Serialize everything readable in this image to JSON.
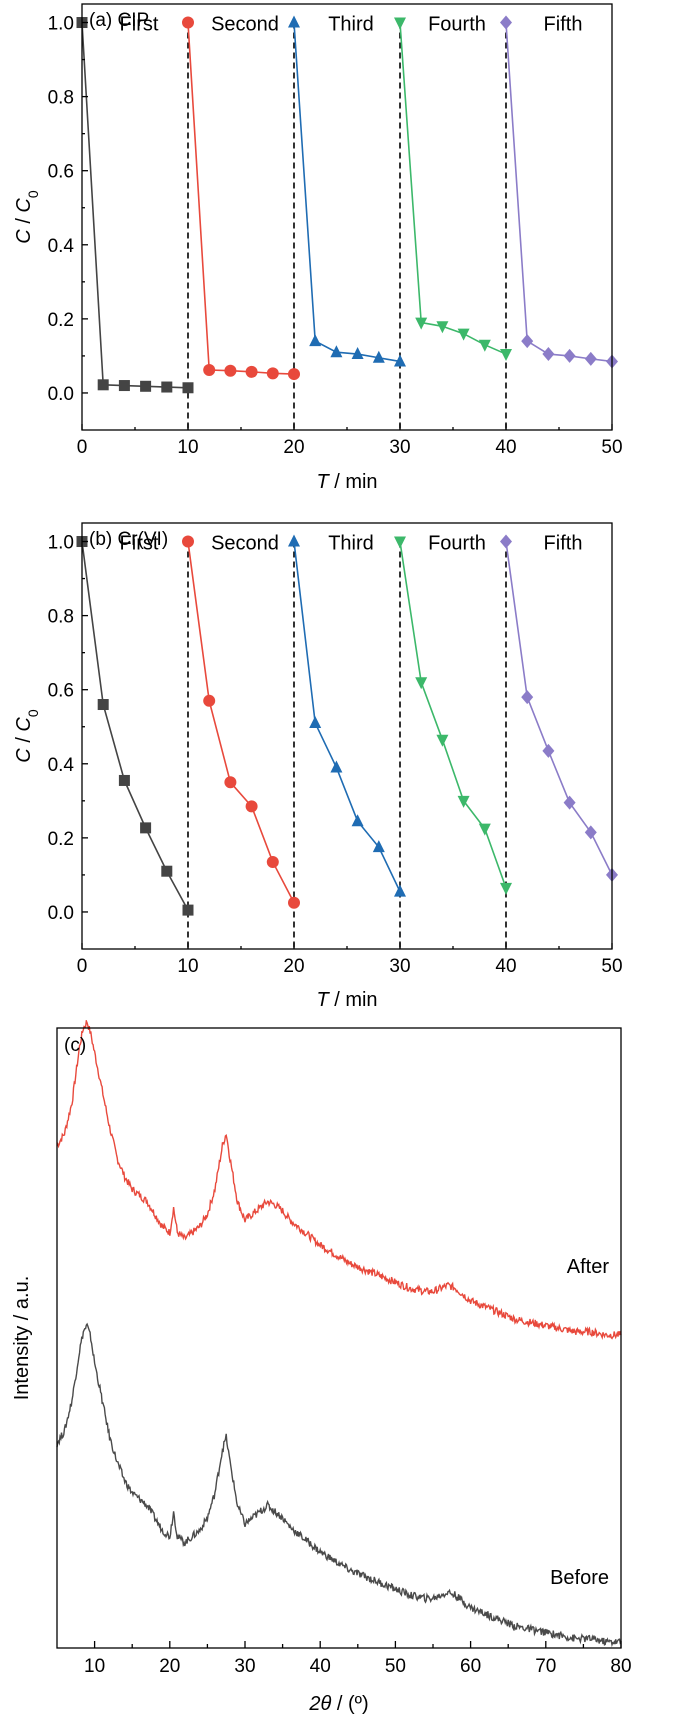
{
  "chart_data": [
    {
      "type": "line",
      "panel_label": "(a) CIP",
      "xlabel_italic": "T",
      "xlabel_rest": " / min",
      "ylabel_c": "C",
      "ylabel_sep": " / ",
      "ylabel_c0": "C",
      "ylabel_c0_sub": "0",
      "xlim": [
        0,
        50
      ],
      "ylim": [
        -0.1,
        1.05
      ],
      "xticks": [
        "0",
        "10",
        "20",
        "30",
        "40",
        "50"
      ],
      "yticks": [
        "0.0",
        "0.2",
        "0.4",
        "0.6",
        "0.8",
        "1.0"
      ],
      "dashed_lines_x": [
        10,
        20,
        30,
        40
      ],
      "cycle_labels": [
        "First",
        "Second",
        "Third",
        "Fourth",
        "Fifth"
      ],
      "series": [
        {
          "color": "#444444",
          "marker": "square",
          "x": [
            0,
            2,
            4,
            6,
            8,
            10
          ],
          "y": [
            1.0,
            0.022,
            0.02,
            0.018,
            0.016,
            0.014
          ]
        },
        {
          "color": "#e8493c",
          "marker": "circle",
          "x": [
            10,
            12,
            14,
            16,
            18,
            20
          ],
          "y": [
            1.0,
            0.062,
            0.06,
            0.057,
            0.053,
            0.051
          ]
        },
        {
          "color": "#1f6cb3",
          "marker": "triangle-up",
          "x": [
            20,
            22,
            24,
            26,
            28,
            30
          ],
          "y": [
            1.0,
            0.14,
            0.11,
            0.105,
            0.095,
            0.085
          ]
        },
        {
          "color": "#3cb86a",
          "marker": "triangle-down",
          "x": [
            30,
            32,
            34,
            36,
            38,
            40
          ],
          "y": [
            1.0,
            0.19,
            0.18,
            0.16,
            0.13,
            0.105
          ]
        },
        {
          "color": "#8b7cc8",
          "marker": "diamond",
          "x": [
            40,
            42,
            44,
            46,
            48,
            50
          ],
          "y": [
            1.0,
            0.14,
            0.105,
            0.1,
            0.092,
            0.085
          ]
        }
      ]
    },
    {
      "type": "line",
      "panel_label": "(b) Cr(VI)",
      "xlabel_italic": "T",
      "xlabel_rest": " / min",
      "ylabel_c": "C",
      "ylabel_sep": " / ",
      "ylabel_c0": "C",
      "ylabel_c0_sub": "0",
      "xlim": [
        0,
        50
      ],
      "ylim": [
        -0.1,
        1.05
      ],
      "xticks": [
        "0",
        "10",
        "20",
        "30",
        "40",
        "50"
      ],
      "yticks": [
        "0.0",
        "0.2",
        "0.4",
        "0.6",
        "0.8",
        "1.0"
      ],
      "dashed_lines_x": [
        10,
        20,
        30,
        40
      ],
      "cycle_labels": [
        "First",
        "Second",
        "Third",
        "Fourth",
        "Fifth"
      ],
      "series": [
        {
          "color": "#444444",
          "marker": "square",
          "x": [
            0,
            2,
            4,
            6,
            8,
            10
          ],
          "y": [
            1.0,
            0.56,
            0.355,
            0.227,
            0.11,
            0.005
          ]
        },
        {
          "color": "#e8493c",
          "marker": "circle",
          "x": [
            10,
            12,
            14,
            16,
            18,
            20
          ],
          "y": [
            1.0,
            0.57,
            0.35,
            0.285,
            0.135,
            0.025
          ]
        },
        {
          "color": "#1f6cb3",
          "marker": "triangle-up",
          "x": [
            20,
            22,
            24,
            26,
            28,
            30
          ],
          "y": [
            1.0,
            0.51,
            0.39,
            0.245,
            0.175,
            0.055
          ]
        },
        {
          "color": "#3cb86a",
          "marker": "triangle-down",
          "x": [
            30,
            32,
            34,
            36,
            38,
            40
          ],
          "y": [
            1.0,
            0.62,
            0.465,
            0.3,
            0.225,
            0.065
          ]
        },
        {
          "color": "#8b7cc8",
          "marker": "diamond",
          "x": [
            40,
            42,
            44,
            46,
            48,
            50
          ],
          "y": [
            1.0,
            0.58,
            0.435,
            0.295,
            0.215,
            0.1
          ]
        }
      ]
    },
    {
      "type": "line",
      "panel_label": "(c)",
      "xlabel_theta_pre": "2",
      "xlabel_theta": "θ",
      "xlabel_rest": " / (º)",
      "ylabel": "Intensity / a.u.",
      "xlim": [
        5,
        80
      ],
      "ylim": [
        0,
        1
      ],
      "xticks": [
        "10",
        "20",
        "30",
        "40",
        "50",
        "60",
        "70",
        "80"
      ],
      "series": [
        {
          "name": "After",
          "color": "#e8493c",
          "offset": 0.55,
          "x": [
            5,
            6,
            7,
            8,
            8.5,
            9,
            9.5,
            10,
            11,
            12,
            13,
            14,
            15,
            16,
            17,
            18,
            19,
            20,
            20.5,
            21,
            22,
            23,
            24,
            25,
            26,
            27,
            27.5,
            28,
            29,
            30,
            31,
            32,
            33,
            34,
            35,
            36,
            38,
            40,
            42,
            44,
            46,
            48,
            50,
            52,
            54,
            55,
            56,
            57,
            58,
            59,
            60,
            62,
            64,
            66,
            68,
            70,
            72,
            74,
            76,
            78,
            80
          ],
          "y": [
            0.26,
            0.28,
            0.33,
            0.42,
            0.45,
            0.46,
            0.44,
            0.41,
            0.35,
            0.29,
            0.24,
            0.21,
            0.19,
            0.18,
            0.17,
            0.15,
            0.13,
            0.12,
            0.16,
            0.12,
            0.11,
            0.12,
            0.13,
            0.15,
            0.19,
            0.26,
            0.28,
            0.24,
            0.17,
            0.14,
            0.15,
            0.16,
            0.17,
            0.165,
            0.155,
            0.14,
            0.12,
            0.1,
            0.085,
            0.07,
            0.06,
            0.05,
            0.04,
            0.03,
            0.025,
            0.025,
            0.03,
            0.035,
            0.03,
            0.02,
            0.01,
            0.0,
            -0.01,
            -0.02,
            -0.025,
            -0.03,
            -0.035,
            -0.04,
            -0.04,
            -0.045,
            -0.045
          ]
        },
        {
          "name": "Before",
          "color": "#4a4a4a",
          "offset": 0.05,
          "x": [
            5,
            6,
            7,
            8,
            8.5,
            9,
            9.5,
            10,
            11,
            12,
            13,
            14,
            15,
            16,
            17,
            18,
            19,
            20,
            20.5,
            21,
            22,
            23,
            24,
            25,
            26,
            27,
            27.5,
            28,
            29,
            30,
            31,
            32,
            33,
            34,
            35,
            36,
            38,
            40,
            42,
            44,
            46,
            48,
            50,
            52,
            54,
            55,
            56,
            57,
            58,
            59,
            60,
            62,
            64,
            66,
            68,
            70,
            72,
            74,
            76,
            78,
            80
          ],
          "y": [
            0.28,
            0.3,
            0.35,
            0.43,
            0.46,
            0.47,
            0.45,
            0.41,
            0.35,
            0.29,
            0.25,
            0.22,
            0.2,
            0.19,
            0.18,
            0.16,
            0.14,
            0.13,
            0.17,
            0.13,
            0.12,
            0.13,
            0.14,
            0.16,
            0.2,
            0.27,
            0.29,
            0.25,
            0.18,
            0.15,
            0.16,
            0.17,
            0.18,
            0.17,
            0.16,
            0.145,
            0.125,
            0.105,
            0.09,
            0.075,
            0.065,
            0.055,
            0.045,
            0.035,
            0.03,
            0.03,
            0.035,
            0.04,
            0.035,
            0.025,
            0.015,
            0.005,
            -0.005,
            -0.015,
            -0.02,
            -0.025,
            -0.03,
            -0.035,
            -0.035,
            -0.04,
            -0.04
          ]
        }
      ]
    }
  ]
}
